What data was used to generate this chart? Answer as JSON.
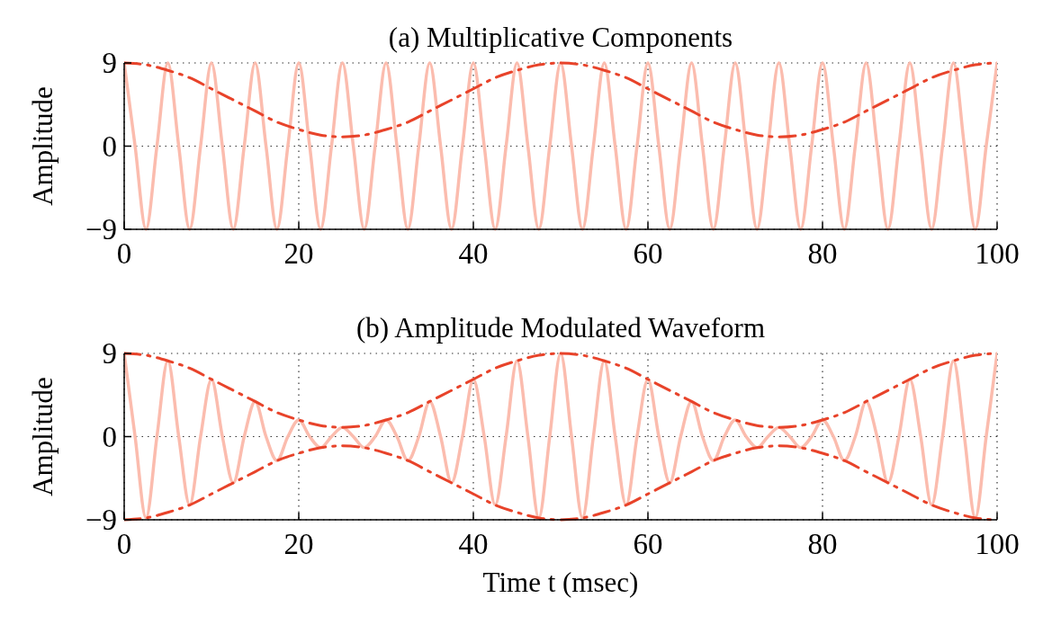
{
  "chart_data": [
    {
      "type": "line",
      "title": "(a) Multiplicative Components",
      "ylabel": "Amplitude",
      "xlim": [
        0,
        100
      ],
      "ylim": [
        -9,
        9
      ],
      "xticks": [
        0,
        20,
        40,
        60,
        80,
        100
      ],
      "yticks": [
        {
          "value": -9,
          "label": "−9"
        },
        {
          "value": 0,
          "label": "0"
        },
        {
          "value": 9,
          "label": "9"
        }
      ],
      "grid": true,
      "series": [
        {
          "color": "#fbbcae",
          "line_style": "solid",
          "x": [
            0,
            1.25,
            2.5,
            3.75,
            5,
            6.25,
            7.5,
            8.75,
            10,
            11.25,
            12.5,
            13.75,
            15,
            16.25,
            17.5,
            18.75,
            20,
            21.25,
            22.5,
            23.75,
            25,
            26.25,
            27.5,
            28.75,
            30,
            31.25,
            32.5,
            33.75,
            35,
            36.25,
            37.5,
            38.75,
            40,
            41.25,
            42.5,
            43.75,
            45,
            46.25,
            47.5,
            48.75,
            50,
            51.25,
            52.5,
            53.75,
            55,
            56.25,
            57.5,
            58.75,
            60,
            61.25,
            62.5,
            63.75,
            65,
            66.25,
            67.5,
            68.75,
            70,
            71.25,
            72.5,
            73.75,
            75,
            76.25,
            77.5,
            78.75,
            80,
            81.25,
            82.5,
            83.75,
            85,
            86.25,
            87.5,
            88.75,
            90,
            91.25,
            92.5,
            93.75,
            95,
            96.25,
            97.5,
            98.75,
            100
          ],
          "values": [
            9,
            0,
            -9,
            0,
            9,
            0,
            -9,
            0,
            9,
            0,
            -9,
            0,
            9,
            0,
            -9,
            0,
            9,
            0,
            -9,
            0,
            9,
            0,
            -9,
            0,
            9,
            0,
            -9,
            0,
            9,
            0,
            -9,
            0,
            9,
            0,
            -9,
            0,
            9,
            0,
            -9,
            0,
            9,
            0,
            -9,
            0,
            9,
            0,
            -9,
            0,
            9,
            0,
            -9,
            0,
            9,
            0,
            -9,
            0,
            9,
            0,
            -9,
            0,
            9,
            0,
            -9,
            0,
            9,
            0,
            -9,
            0,
            9,
            0,
            -9,
            0,
            9,
            0,
            -9,
            0,
            9,
            0,
            -9,
            0,
            9
          ]
        },
        {
          "color": "#e8432a",
          "line_style": "dashed",
          "x": [
            0,
            2.5,
            5,
            7.5,
            10,
            12.5,
            15,
            17.5,
            20,
            22.5,
            25,
            27.5,
            30,
            32.5,
            35,
            37.5,
            40,
            42.5,
            45,
            47.5,
            50,
            52.5,
            55,
            57.5,
            60,
            62.5,
            65,
            67.5,
            70,
            72.5,
            75,
            77.5,
            80,
            82.5,
            85,
            87.5,
            90,
            92.5,
            95,
            97.5,
            100
          ],
          "values": [
            9,
            8.8,
            8.2,
            7.4,
            6.2,
            5,
            3.8,
            2.6,
            1.8,
            1.2,
            1,
            1.2,
            1.8,
            2.6,
            3.8,
            5,
            6.2,
            7.4,
            8.2,
            8.8,
            9,
            8.8,
            8.2,
            7.4,
            6.2,
            5,
            3.8,
            2.6,
            1.8,
            1.2,
            1,
            1.2,
            1.8,
            2.6,
            3.8,
            5,
            6.2,
            7.4,
            8.2,
            8.8,
            9
          ]
        }
      ]
    },
    {
      "type": "line",
      "title": "(b) Amplitude Modulated Waveform",
      "xlabel": "Time t (msec)",
      "ylabel": "Amplitude",
      "xlim": [
        0,
        100
      ],
      "ylim": [
        -9,
        9
      ],
      "xticks": [
        0,
        20,
        40,
        60,
        80,
        100
      ],
      "yticks": [
        {
          "value": -9,
          "label": "−9"
        },
        {
          "value": 0,
          "label": "0"
        },
        {
          "value": 9,
          "label": "9"
        }
      ],
      "grid": true,
      "series": [
        {
          "color": "#fbbcae",
          "line_style": "solid",
          "x": [
            0,
            1.25,
            2.5,
            3.75,
            5,
            6.25,
            7.5,
            8.75,
            10,
            11.25,
            12.5,
            13.75,
            15,
            16.25,
            17.5,
            18.75,
            20,
            21.25,
            22.5,
            23.75,
            25,
            26.25,
            27.5,
            28.75,
            30,
            31.25,
            32.5,
            33.75,
            35,
            36.25,
            37.5,
            38.75,
            40,
            41.25,
            42.5,
            43.75,
            45,
            46.25,
            47.5,
            48.75,
            50,
            51.25,
            52.5,
            53.75,
            55,
            56.25,
            57.5,
            58.75,
            60,
            61.25,
            62.5,
            63.75,
            65,
            66.25,
            67.5,
            68.75,
            70,
            71.25,
            72.5,
            73.75,
            75,
            76.25,
            77.5,
            78.75,
            80,
            81.25,
            82.5,
            83.75,
            85,
            86.25,
            87.5,
            88.75,
            90,
            91.25,
            92.5,
            93.75,
            95,
            96.25,
            97.5,
            98.75,
            100
          ],
          "values": [
            9,
            0,
            -8.8,
            0,
            8.2,
            0,
            -7.4,
            0,
            6.2,
            0,
            -5,
            0,
            3.8,
            0,
            -2.6,
            0,
            1.8,
            0,
            -1.2,
            0,
            1,
            0,
            -1.2,
            0,
            1.8,
            0,
            -2.6,
            0,
            3.8,
            0,
            -5,
            0,
            6.2,
            0,
            -7.4,
            0,
            8.2,
            0,
            -8.8,
            0,
            9,
            0,
            -8.8,
            0,
            8.2,
            0,
            -7.4,
            0,
            6.2,
            0,
            -5,
            0,
            3.8,
            0,
            -2.6,
            0,
            1.8,
            0,
            -1.2,
            0,
            1,
            0,
            -1.2,
            0,
            1.8,
            0,
            -2.6,
            0,
            3.8,
            0,
            -5,
            0,
            6.2,
            0,
            -7.4,
            0,
            8.2,
            0,
            -8.8,
            0,
            9
          ]
        },
        {
          "color": "#e8432a",
          "line_style": "dashed",
          "x": [
            0,
            2.5,
            5,
            7.5,
            10,
            12.5,
            15,
            17.5,
            20,
            22.5,
            25,
            27.5,
            30,
            32.5,
            35,
            37.5,
            40,
            42.5,
            45,
            47.5,
            50,
            52.5,
            55,
            57.5,
            60,
            62.5,
            65,
            67.5,
            70,
            72.5,
            75,
            77.5,
            80,
            82.5,
            85,
            87.5,
            90,
            92.5,
            95,
            97.5,
            100
          ],
          "values": [
            9,
            8.8,
            8.2,
            7.4,
            6.2,
            5,
            3.8,
            2.6,
            1.8,
            1.2,
            1,
            1.2,
            1.8,
            2.6,
            3.8,
            5,
            6.2,
            7.4,
            8.2,
            8.8,
            9,
            8.8,
            8.2,
            7.4,
            6.2,
            5,
            3.8,
            2.6,
            1.8,
            1.2,
            1,
            1.2,
            1.8,
            2.6,
            3.8,
            5,
            6.2,
            7.4,
            8.2,
            8.8,
            9
          ]
        },
        {
          "color": "#e8432a",
          "line_style": "dashed",
          "x": [
            0,
            2.5,
            5,
            7.5,
            10,
            12.5,
            15,
            17.5,
            20,
            22.5,
            25,
            27.5,
            30,
            32.5,
            35,
            37.5,
            40,
            42.5,
            45,
            47.5,
            50,
            52.5,
            55,
            57.5,
            60,
            62.5,
            65,
            67.5,
            70,
            72.5,
            75,
            77.5,
            80,
            82.5,
            85,
            87.5,
            90,
            92.5,
            95,
            97.5,
            100
          ],
          "values": [
            -9,
            -8.8,
            -8.2,
            -7.4,
            -6.2,
            -5,
            -3.8,
            -2.6,
            -1.8,
            -1.2,
            -1,
            -1.2,
            -1.8,
            -2.6,
            -3.8,
            -5,
            -6.2,
            -7.4,
            -8.2,
            -8.8,
            -9,
            -8.8,
            -8.2,
            -7.4,
            -6.2,
            -5,
            -3.8,
            -2.6,
            -1.8,
            -1.2,
            -1,
            -1.2,
            -1.8,
            -2.6,
            -3.8,
            -5,
            -6.2,
            -7.4,
            -8.2,
            -8.8,
            -9
          ]
        }
      ]
    }
  ]
}
